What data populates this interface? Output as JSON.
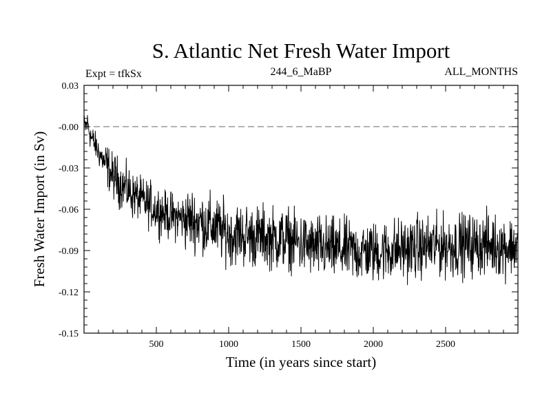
{
  "chart_data": {
    "type": "line",
    "title": "S. Atlantic Net Fresh Water Import",
    "subtitle_left": "Expt = tfkSx",
    "subtitle_center": "244_6_MaBP",
    "subtitle_right": "ALL_MONTHS",
    "xlabel": "Time (in years since start)",
    "ylabel": "Fresh Water Import (in Sv)",
    "xlim": [
      0,
      3000
    ],
    "ylim": [
      -0.15,
      0.03
    ],
    "xticks": [
      500,
      1000,
      1500,
      2000,
      2500
    ],
    "xtick_labels": [
      "500",
      "1000",
      "1500",
      "2000",
      "2500"
    ],
    "yticks": [
      0.03,
      0.0,
      -0.03,
      -0.06,
      -0.09,
      -0.12,
      -0.15
    ],
    "ytick_labels": [
      "0.03",
      "-0.00",
      "-0.03",
      "-0.06",
      "-0.09",
      "-0.12",
      "-0.15"
    ],
    "reference_line": {
      "y": 0.0,
      "style": "dashed"
    },
    "series": [
      {
        "name": "Net fresh water import",
        "color": "#000000",
        "trend_x": [
          0,
          25,
          50,
          100,
          150,
          200,
          300,
          400,
          500,
          600,
          700,
          800,
          900,
          1000,
          1200,
          1400,
          1600,
          1800,
          2000,
          2200,
          2400,
          2600,
          2800,
          3000
        ],
        "trend_y": [
          -0.001,
          0.002,
          -0.008,
          -0.018,
          -0.028,
          -0.036,
          -0.046,
          -0.054,
          -0.06,
          -0.065,
          -0.067,
          -0.069,
          -0.073,
          -0.078,
          -0.08,
          -0.082,
          -0.088,
          -0.09,
          -0.091,
          -0.089,
          -0.087,
          -0.086,
          -0.086,
          -0.087
        ],
        "noise_amplitude_sv": 0.012
      }
    ]
  },
  "colors": {
    "line": "#000000",
    "axis": "#000000",
    "background": "#ffffff",
    "reference": "#666666"
  }
}
